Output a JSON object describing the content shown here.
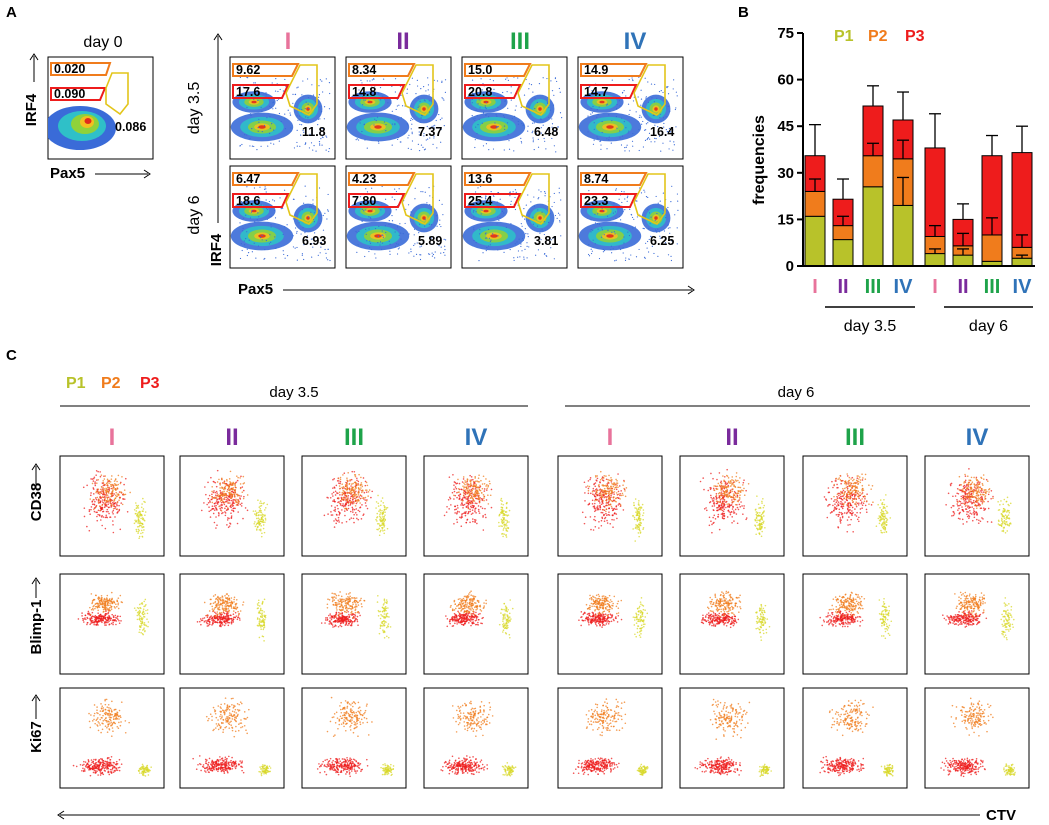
{
  "panels": {
    "A": {
      "letter": "A",
      "day0": {
        "title": "day 0",
        "gate_top": "0.020",
        "gate_mid": "0.090",
        "gate_pax5": "0.086"
      },
      "ylabel": "IRF4",
      "xlabel": "Pax5",
      "rows": [
        {
          "label": "day 3.5",
          "cols": [
            {
              "top": "9.62",
              "mid": "17.6",
              "pax5": "11.8"
            },
            {
              "top": "8.34",
              "mid": "14.8",
              "pax5": "7.37"
            },
            {
              "top": "15.0",
              "mid": "20.8",
              "pax5": "6.48"
            },
            {
              "top": "14.9",
              "mid": "14.7",
              "pax5": "16.4"
            }
          ]
        },
        {
          "label": "day 6",
          "cols": [
            {
              "top": "6.47",
              "mid": "18.6",
              "pax5": "6.93"
            },
            {
              "top": "4.23",
              "mid": "7.80",
              "pax5": "5.89"
            },
            {
              "top": "13.6",
              "mid": "25.4",
              "pax5": "3.81"
            },
            {
              "top": "8.74",
              "mid": "23.3",
              "pax5": "6.25"
            }
          ]
        }
      ],
      "conditions": [
        "I",
        "II",
        "III",
        "IV"
      ]
    },
    "B": {
      "letter": "B"
    },
    "C": {
      "letter": "C",
      "legend": [
        "P1",
        "P2",
        "P3"
      ],
      "groups": [
        "day 3.5",
        "day 6"
      ],
      "conditions": [
        "I",
        "II",
        "III",
        "IV",
        "I",
        "II",
        "III",
        "IV"
      ],
      "row_labels": [
        "CD38",
        "Blimp-1",
        "Ki67"
      ],
      "xlabel": "CTV"
    }
  },
  "colors": {
    "I": "#e8739b",
    "II": "#7a2b9c",
    "III": "#1ea34a",
    "IV": "#2f73b8",
    "P1": "#b8c22a",
    "P2": "#f07c1c",
    "P3": "#ee1c1c"
  },
  "chart_data": {
    "type": "bar",
    "stacked": true,
    "title": "",
    "ylabel": "frequencies",
    "ylim": [
      0,
      75
    ],
    "yticks": [
      "0",
      "15",
      "30",
      "45",
      "60",
      "75"
    ],
    "categories": [
      "I",
      "II",
      "III",
      "IV",
      "I",
      "II",
      "III",
      "IV"
    ],
    "groups": [
      {
        "label": "day 3.5",
        "categories": [
          0,
          1,
          2,
          3
        ]
      },
      {
        "label": "day 6",
        "categories": [
          4,
          5,
          6,
          7
        ]
      }
    ],
    "legend": [
      "P1",
      "P2",
      "P3"
    ],
    "series": [
      {
        "name": "P1",
        "values": [
          16,
          8.5,
          25.5,
          19.5,
          4,
          3.5,
          1.5,
          2.5
        ],
        "err": [
          null,
          null,
          null,
          9,
          1.5,
          2,
          null,
          1
        ]
      },
      {
        "name": "P2",
        "values": [
          8,
          4.5,
          10,
          15,
          5.5,
          3,
          8.5,
          3.5
        ],
        "err": [
          4,
          3,
          4,
          6,
          3.5,
          4,
          5.5,
          4
        ]
      },
      {
        "name": "P3",
        "values": [
          11.5,
          8.5,
          16,
          12.5,
          28.5,
          8.5,
          25.5,
          30.5
        ],
        "err": [
          10,
          6.5,
          6.5,
          9,
          11,
          5,
          6.5,
          8.5
        ]
      }
    ]
  }
}
